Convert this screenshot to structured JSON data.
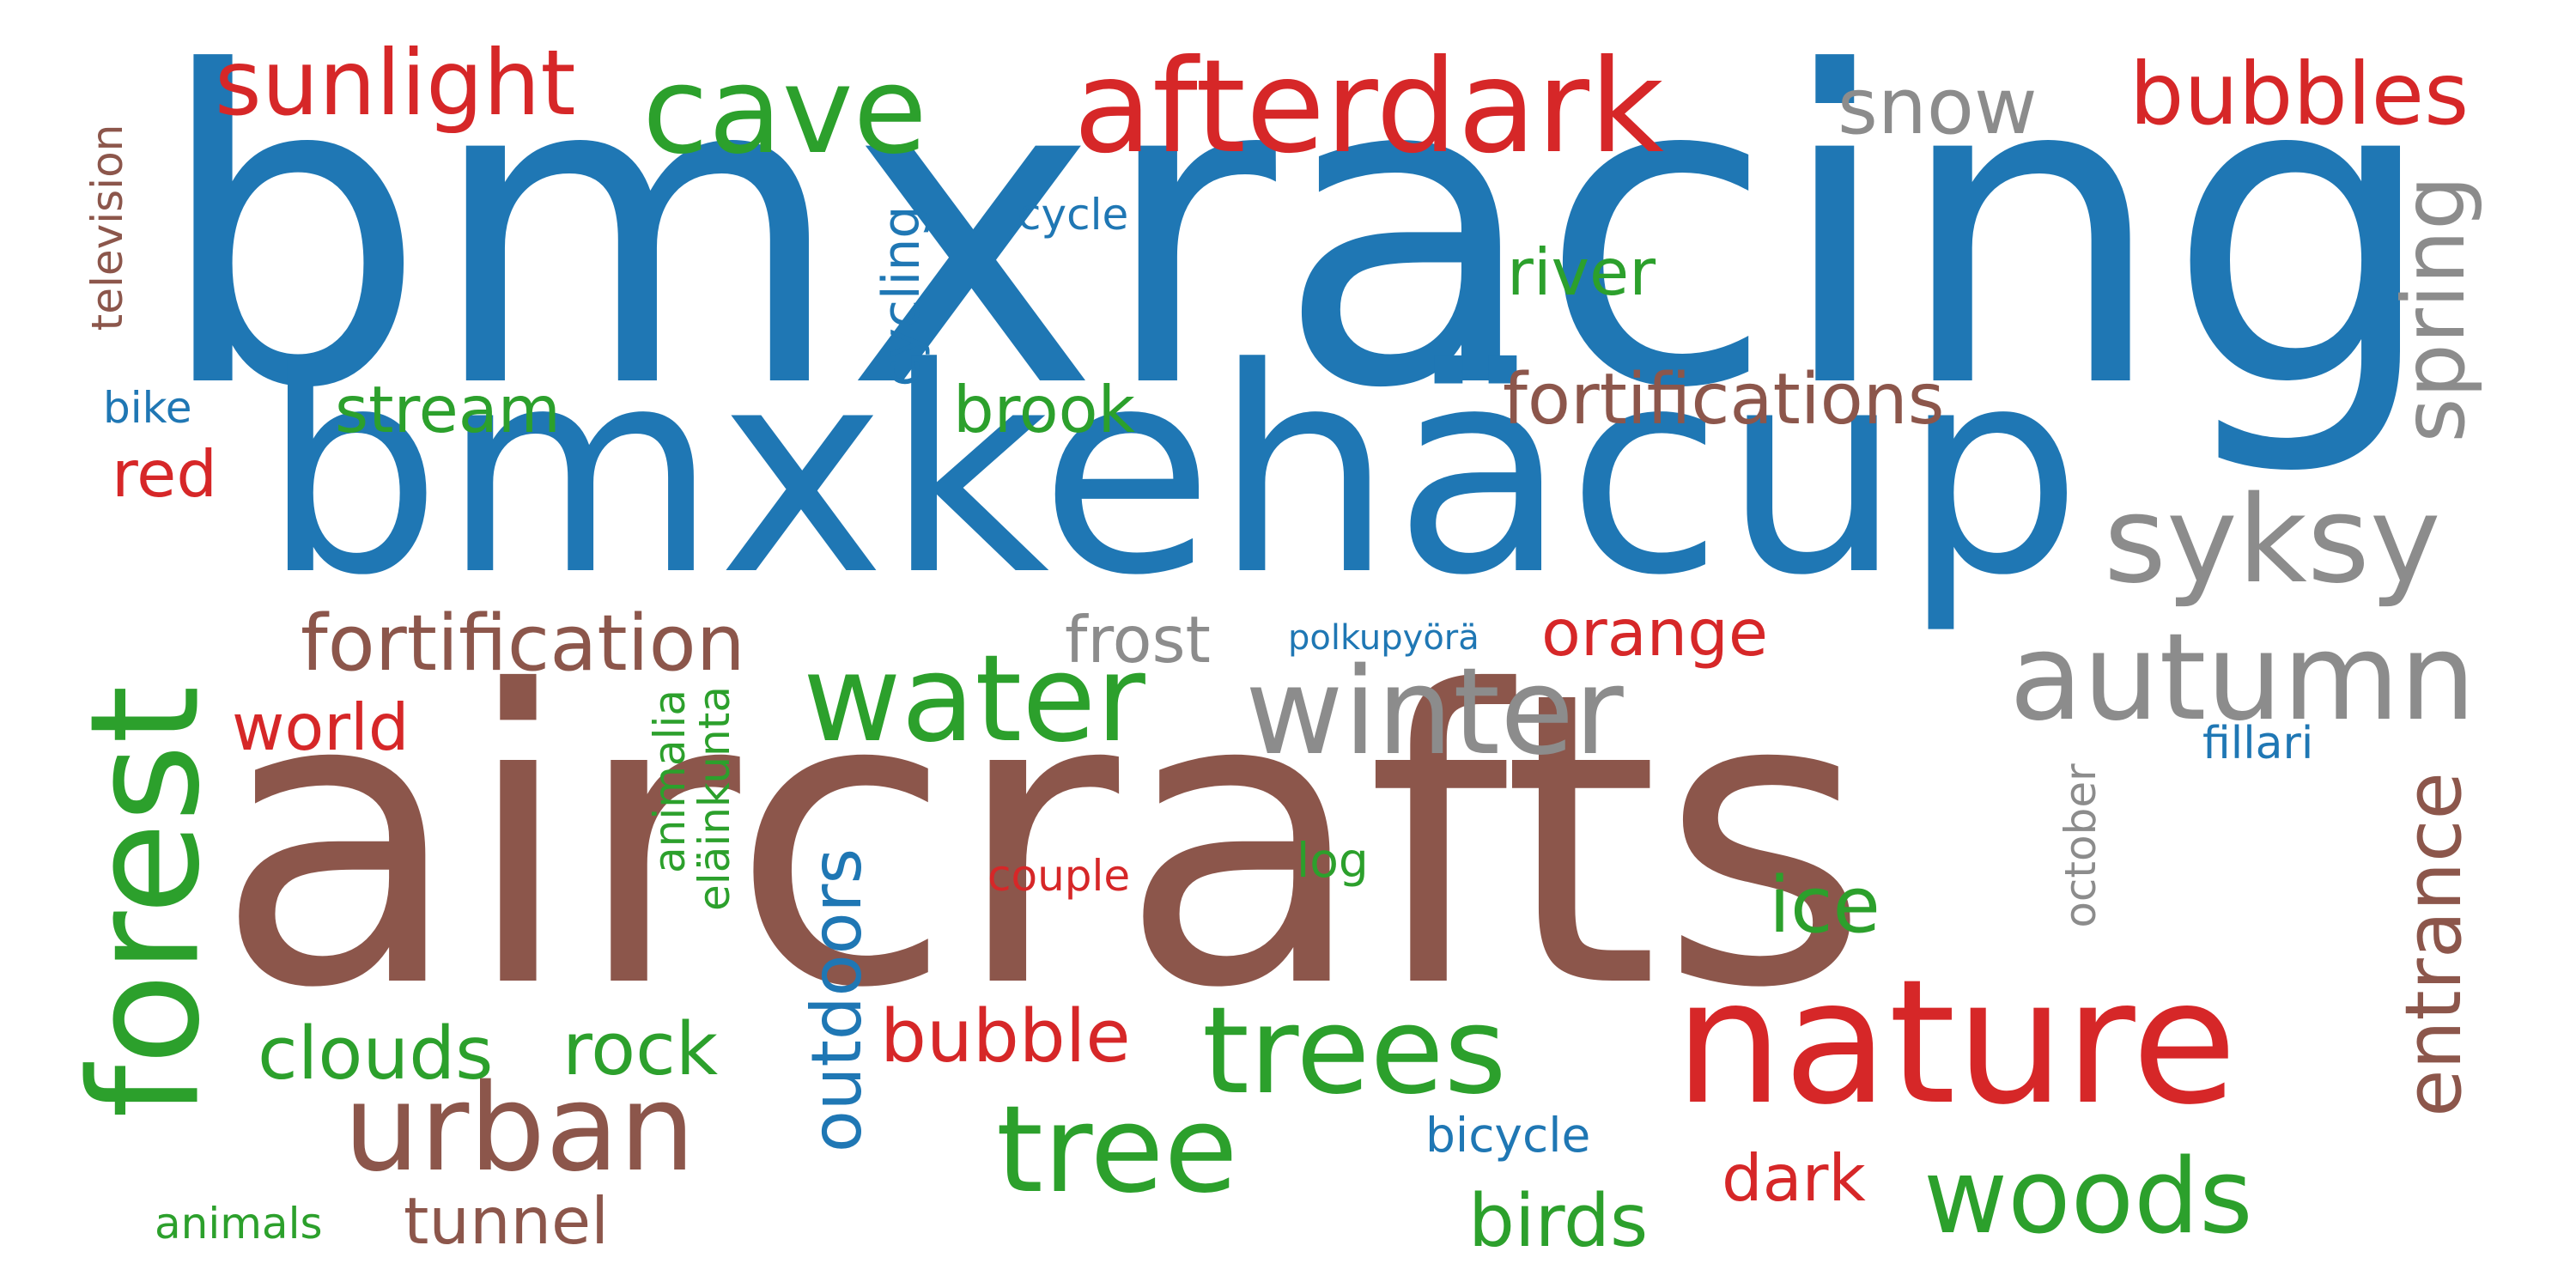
{
  "palette": {
    "blue": "#1f77b4",
    "brown": "#8c564b",
    "green": "#2ca02c",
    "red": "#d62728",
    "grey": "#8c8c8c"
  },
  "words": [
    {
      "text": "bmxracing",
      "color": "blue"
    },
    {
      "text": "bmxkehäcup",
      "color": "blue"
    },
    {
      "text": "aircrafts",
      "color": "brown"
    },
    {
      "text": "nature",
      "color": "red"
    },
    {
      "text": "forest",
      "color": "green"
    },
    {
      "text": "afterdark",
      "color": "red"
    },
    {
      "text": "cave",
      "color": "green"
    },
    {
      "text": "sunlight",
      "color": "red"
    },
    {
      "text": "snow",
      "color": "grey"
    },
    {
      "text": "bubbles",
      "color": "red"
    },
    {
      "text": "spring",
      "color": "grey"
    },
    {
      "text": "syksy",
      "color": "grey"
    },
    {
      "text": "autumn",
      "color": "grey"
    },
    {
      "text": "winter",
      "color": "grey"
    },
    {
      "text": "water",
      "color": "green"
    },
    {
      "text": "fortifications",
      "color": "brown"
    },
    {
      "text": "fortification",
      "color": "brown"
    },
    {
      "text": "urban",
      "color": "brown"
    },
    {
      "text": "trees",
      "color": "green"
    },
    {
      "text": "tree",
      "color": "green"
    },
    {
      "text": "woods",
      "color": "green"
    },
    {
      "text": "entrance",
      "color": "brown"
    },
    {
      "text": "television",
      "color": "brown"
    },
    {
      "text": "cycle",
      "color": "blue"
    },
    {
      "text": "river",
      "color": "green"
    },
    {
      "text": "cycling",
      "color": "blue"
    },
    {
      "text": "stream",
      "color": "green"
    },
    {
      "text": "brook",
      "color": "green"
    },
    {
      "text": "bike",
      "color": "blue"
    },
    {
      "text": "red",
      "color": "red"
    },
    {
      "text": "frost",
      "color": "grey"
    },
    {
      "text": "polkupyörä",
      "color": "blue"
    },
    {
      "text": "orange",
      "color": "red"
    },
    {
      "text": "world",
      "color": "red"
    },
    {
      "text": "animalia",
      "color": "green"
    },
    {
      "text": "eläinkunta",
      "color": "green"
    },
    {
      "text": "fillari",
      "color": "blue"
    },
    {
      "text": "october",
      "color": "grey"
    },
    {
      "text": "outdoors",
      "color": "blue"
    },
    {
      "text": "couple",
      "color": "red"
    },
    {
      "text": "log",
      "color": "green"
    },
    {
      "text": "ice",
      "color": "green"
    },
    {
      "text": "clouds",
      "color": "green"
    },
    {
      "text": "rock",
      "color": "green"
    },
    {
      "text": "bubble",
      "color": "red"
    },
    {
      "text": "dark",
      "color": "red"
    },
    {
      "text": "birds",
      "color": "green"
    },
    {
      "text": "bicycle",
      "color": "blue"
    },
    {
      "text": "animals",
      "color": "green"
    },
    {
      "text": "tunnel",
      "color": "brown"
    }
  ]
}
